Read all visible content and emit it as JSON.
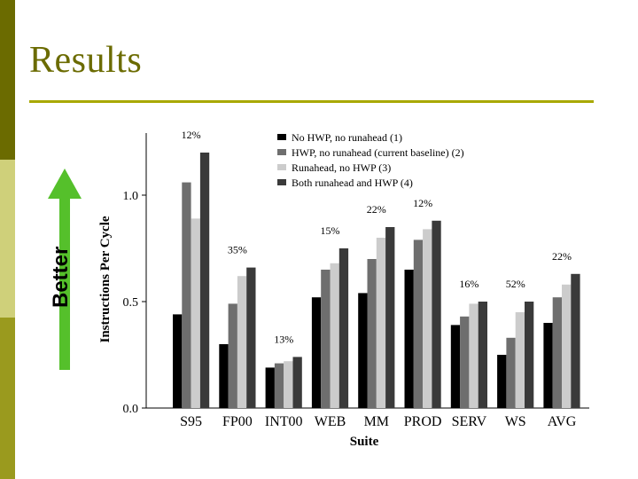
{
  "slide": {
    "title": "Results",
    "better_label": "Better",
    "colors": {
      "accent": "#6b6b00",
      "band_dark": "#6b6b00",
      "band_light": "#cfd07a",
      "band_mid": "#9a9a1e",
      "rule": "#a8a800",
      "arrow": "#55c02b"
    }
  },
  "chart_data": {
    "type": "bar",
    "xlabel": "Suite",
    "ylabel": "Instructions Per Cycle",
    "ylim": [
      0,
      1.3
    ],
    "yticks": [
      "0.0",
      "0.5",
      "1.0"
    ],
    "categories": [
      "S95",
      "FP00",
      "INT00",
      "WEB",
      "MM",
      "PROD",
      "SERV",
      "WS",
      "AVG"
    ],
    "series": [
      {
        "name": "No HWP, no runahead (1)",
        "color": "#000000",
        "values": [
          0.44,
          0.3,
          0.19,
          0.52,
          0.54,
          0.65,
          0.39,
          0.25,
          0.4
        ]
      },
      {
        "name": "HWP, no runahead (current baseline) (2)",
        "color": "#6e6e6e",
        "values": [
          1.06,
          0.49,
          0.21,
          0.65,
          0.7,
          0.79,
          0.43,
          0.33,
          0.52
        ]
      },
      {
        "name": "Runahead, no HWP (3)",
        "color": "#cccccc",
        "values": [
          0.89,
          0.62,
          0.22,
          0.68,
          0.8,
          0.84,
          0.49,
          0.45,
          0.58
        ]
      },
      {
        "name": "Both runahead and HWP (4)",
        "color": "#3a3a3a",
        "values": [
          1.2,
          0.66,
          0.24,
          0.75,
          0.85,
          0.88,
          0.5,
          0.5,
          0.63
        ]
      }
    ],
    "annotations": [
      "12%",
      "35%",
      "13%",
      "15%",
      "22%",
      "12%",
      "16%",
      "52%",
      "22%"
    ]
  }
}
